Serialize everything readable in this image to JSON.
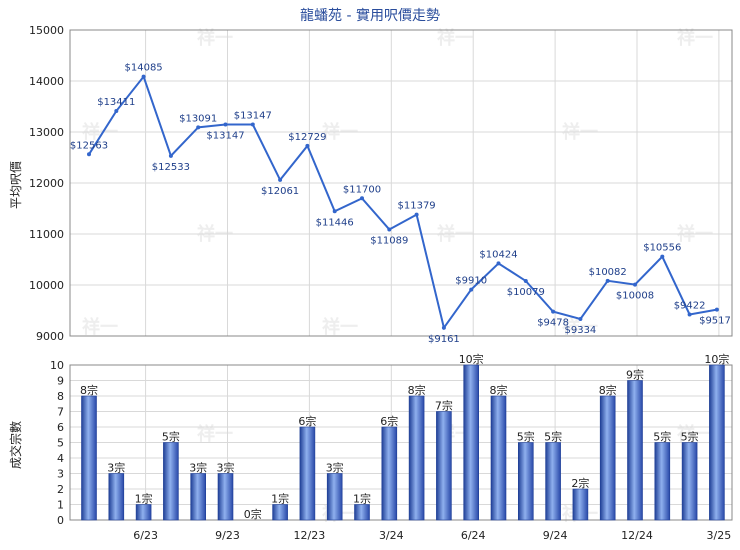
{
  "chart_data": [
    {
      "type": "line",
      "title": "龍蟠苑 - 實用呎價走勢",
      "ylabel": "平均呎價",
      "ylim": [
        9000,
        15000
      ],
      "yticks": [
        9000,
        10000,
        11000,
        12000,
        13000,
        14000,
        15000
      ],
      "x_tick_labels": [
        "6/23",
        "9/23",
        "12/23",
        "3/24",
        "6/24",
        "9/24",
        "12/24",
        "3/25"
      ],
      "grid": true,
      "series": [
        {
          "color": "#3366cc",
          "values": [
            12563,
            13411,
            14085,
            12533,
            13091,
            13147,
            13147,
            12061,
            12729,
            11446,
            11700,
            11089,
            11379,
            9161,
            9910,
            10424,
            10079,
            9478,
            9334,
            10082,
            10008,
            10556,
            9422,
            9517
          ],
          "labels": [
            "$12563",
            "$13411",
            "$14085",
            "$12533",
            "$13091",
            "$13147",
            "$13147",
            "$12061",
            "$12729",
            "$11446",
            "$11700",
            "$11089",
            "$11379",
            "$9161",
            "$9910",
            "$10424",
            "$10079",
            "$9478",
            "$9334",
            "$10082",
            "$10008",
            "$10556",
            "$9422",
            "$9517"
          ]
        }
      ]
    },
    {
      "type": "bar",
      "ylabel": "成交宗數",
      "ylim": [
        0,
        10
      ],
      "yticks": [
        0,
        1,
        2,
        3,
        4,
        5,
        6,
        7,
        8,
        9,
        10
      ],
      "x_tick_labels": [
        "6/23",
        "9/23",
        "12/23",
        "3/24",
        "6/24",
        "9/24",
        "12/24",
        "3/25"
      ],
      "grid": true,
      "series": [
        {
          "color": "#3a62c0",
          "values": [
            8,
            3,
            1,
            5,
            3,
            3,
            0,
            1,
            6,
            3,
            1,
            6,
            8,
            7,
            10,
            8,
            5,
            5,
            2,
            8,
            9,
            5,
            5,
            10
          ],
          "labels": [
            "8宗",
            "3宗",
            "1宗",
            "5宗",
            "3宗",
            "3宗",
            "0宗",
            "1宗",
            "6宗",
            "3宗",
            "1宗",
            "6宗",
            "8宗",
            "7宗",
            "10宗",
            "8宗",
            "5宗",
            "5宗",
            "2宗",
            "8宗",
            "9宗",
            "5宗",
            "5宗",
            "10宗"
          ]
        }
      ]
    }
  ],
  "watermark": "祥一"
}
